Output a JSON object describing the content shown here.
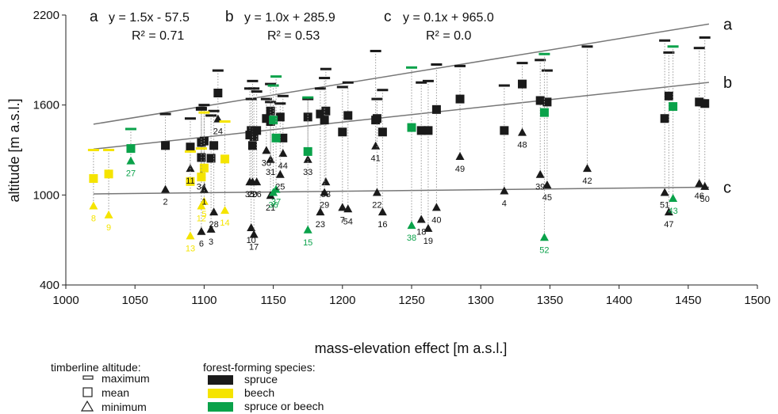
{
  "colors": {
    "spruce": "#1a1a1a",
    "beech": "#f5e400",
    "mixed": "#0aa24a",
    "line": "#777777",
    "dotted": "#9a9a9a"
  },
  "chart_data": {
    "type": "scatter",
    "xlabel": "mass-elevation effect [m a.s.l.]",
    "ylabel": "altitude [m a.s.l.]",
    "xlim": [
      1000,
      1500
    ],
    "ylim": [
      400,
      2200
    ],
    "xticks": [
      "1000",
      "1050",
      "1100",
      "1150",
      "1200",
      "1250",
      "1300",
      "1350",
      "1400",
      "1450",
      "1500"
    ],
    "yticks": [
      "400",
      "1000",
      "1600",
      "2200"
    ],
    "grid": false,
    "regressions": [
      {
        "letter": "a",
        "equation": "y = 1.5x - 57.5",
        "r2": "R² = 0.71",
        "x": [
          1020,
          1465
        ],
        "y": [
          1472,
          2140
        ]
      },
      {
        "letter": "b",
        "equation": "y = 1.0x + 285.9",
        "r2": "R² = 0.53",
        "x": [
          1020,
          1465
        ],
        "y": [
          1306,
          1751
        ]
      },
      {
        "letter": "c",
        "equation": "y = 0.1x + 965.0",
        "r2": "R² = 0.0",
        "x": [
          1020,
          1465
        ],
        "y": [
          1007,
          1052
        ]
      }
    ],
    "points": [
      {
        "id": "2",
        "sp": "spruce",
        "x": 1072,
        "max": 1540,
        "mean": 1330,
        "min": 1030
      },
      {
        "id": "3",
        "sp": "spruce",
        "x": 1105,
        "max": 1530,
        "mean": 1245,
        "min": 765
      },
      {
        "id": "6",
        "sp": "spruce",
        "x": 1098,
        "max": 1570,
        "mean": 1350,
        "min": 750
      },
      {
        "id": "11",
        "sp": "spruce",
        "x": 1090,
        "max": 1510,
        "mean": 1320,
        "min": 1170
      },
      {
        "id": "24",
        "sp": "spruce",
        "x": 1110,
        "max": 1830,
        "mean": 1680,
        "min": 1500
      },
      {
        "id": "1",
        "sp": "spruce",
        "x": 1100,
        "max": 1600,
        "mean": 1360,
        "min": 1030
      },
      {
        "id": "34",
        "sp": "spruce",
        "x": 1098,
        "max": 1580,
        "mean": 1250,
        "min": 1130
      },
      {
        "id": "28",
        "sp": "spruce",
        "x": 1107,
        "max": 1560,
        "mean": 1330,
        "min": 880
      },
      {
        "id": "10",
        "sp": "spruce",
        "x": 1134,
        "max": 1640,
        "mean": 1430,
        "min": 775
      },
      {
        "id": "17",
        "sp": "spruce",
        "x": 1136,
        "max": 1710,
        "mean": 1390,
        "min": 730
      },
      {
        "id": "35",
        "sp": "spruce",
        "x": 1133,
        "max": 1710,
        "mean": 1400,
        "min": 1080
      },
      {
        "id": "20",
        "sp": "spruce",
        "x": 1135,
        "max": 1760,
        "mean": 1330,
        "min": 1080
      },
      {
        "id": "26",
        "sp": "spruce",
        "x": 1138,
        "max": 1690,
        "mean": 1430,
        "min": 1080
      },
      {
        "id": "30",
        "sp": "spruce",
        "x": 1145,
        "max": 1640,
        "mean": 1510,
        "min": 1290
      },
      {
        "id": "31",
        "sp": "spruce",
        "x": 1148,
        "max": 1620,
        "mean": 1560,
        "min": 1230
      },
      {
        "id": "21",
        "sp": "spruce",
        "x": 1148,
        "max": 1740,
        "mean": 1490,
        "min": 990
      },
      {
        "id": "44",
        "sp": "spruce",
        "x": 1157,
        "max": 1660,
        "mean": 1380,
        "min": 1270
      },
      {
        "id": "25",
        "sp": "spruce",
        "x": 1155,
        "max": 1610,
        "mean": 1520,
        "min": 1130
      },
      {
        "id": "33",
        "sp": "spruce",
        "x": 1175,
        "max": 1640,
        "mean": 1520,
        "min": 1230
      },
      {
        "id": "23",
        "sp": "spruce",
        "x": 1184,
        "max": 1710,
        "mean": 1540,
        "min": 880
      },
      {
        "id": "53",
        "sp": "spruce",
        "x": 1188,
        "max": 1840,
        "mean": 1560,
        "min": 1080
      },
      {
        "id": "29",
        "sp": "spruce",
        "x": 1187,
        "max": 1780,
        "mean": 1500,
        "min": 1010
      },
      {
        "id": "7",
        "sp": "spruce",
        "x": 1200,
        "max": 1720,
        "mean": 1420,
        "min": 910
      },
      {
        "id": "54",
        "sp": "spruce",
        "x": 1204,
        "max": 1750,
        "mean": 1530,
        "min": 900
      },
      {
        "id": "41",
        "sp": "spruce",
        "x": 1224,
        "max": 1960,
        "mean": 1500,
        "min": 1320
      },
      {
        "id": "22",
        "sp": "spruce",
        "x": 1225,
        "max": 1640,
        "mean": 1510,
        "min": 1010
      },
      {
        "id": "16",
        "sp": "spruce",
        "x": 1229,
        "max": 1700,
        "mean": 1420,
        "min": 880
      },
      {
        "id": "18",
        "sp": "spruce",
        "x": 1257,
        "max": 1750,
        "mean": 1430,
        "min": 830
      },
      {
        "id": "19",
        "sp": "spruce",
        "x": 1262,
        "max": 1760,
        "mean": 1430,
        "min": 770
      },
      {
        "id": "40",
        "sp": "spruce",
        "x": 1268,
        "max": 1870,
        "mean": 1570,
        "min": 910
      },
      {
        "id": "49",
        "sp": "spruce",
        "x": 1285,
        "max": 1860,
        "mean": 1640,
        "min": 1250
      },
      {
        "id": "4",
        "sp": "spruce",
        "x": 1317,
        "max": 1730,
        "mean": 1430,
        "min": 1020
      },
      {
        "id": "48",
        "sp": "spruce",
        "x": 1330,
        "max": 1880,
        "mean": 1740,
        "min": 1410
      },
      {
        "id": "39",
        "sp": "spruce",
        "x": 1343,
        "max": 1900,
        "mean": 1630,
        "min": 1130
      },
      {
        "id": "45",
        "sp": "spruce",
        "x": 1348,
        "max": 1830,
        "mean": 1620,
        "min": 1060
      },
      {
        "id": "42",
        "sp": "spruce",
        "x": 1377,
        "max": 1990,
        "mean": null,
        "min": 1170
      },
      {
        "id": "51",
        "sp": "spruce",
        "x": 1433,
        "max": 2030,
        "mean": 1510,
        "min": 1010
      },
      {
        "id": "47",
        "sp": "spruce",
        "x": 1436,
        "max": 1950,
        "mean": 1660,
        "min": 880
      },
      {
        "id": "46",
        "sp": "spruce",
        "x": 1458,
        "max": 1980,
        "mean": 1620,
        "min": 1070
      },
      {
        "id": "50",
        "sp": "spruce",
        "x": 1462,
        "max": 2050,
        "mean": 1610,
        "min": 1050
      },
      {
        "id": "8",
        "sp": "beech",
        "x": 1020,
        "max": 1300,
        "mean": 1110,
        "min": 920
      },
      {
        "id": "9",
        "sp": "beech",
        "x": 1031,
        "max": 1300,
        "mean": 1140,
        "min": 860
      },
      {
        "id": "13",
        "sp": "beech",
        "x": 1090,
        "max": 1290,
        "mean": 1090,
        "min": 720
      },
      {
        "id": "5",
        "sp": "beech",
        "x": 1100,
        "max": 1550,
        "mean": 1180,
        "min": 950
      },
      {
        "id": "12",
        "sp": "beech",
        "x": 1098,
        "max": 1310,
        "mean": 1120,
        "min": 920
      },
      {
        "id": "14",
        "sp": "beech",
        "x": 1115,
        "max": 1490,
        "mean": 1240,
        "min": 890
      },
      {
        "id": "27",
        "sp": "mixed",
        "x": 1047,
        "max": 1440,
        "mean": 1310,
        "min": 1220
      },
      {
        "id": "36",
        "sp": "mixed",
        "x": 1150,
        "max": 1730,
        "mean": 1500,
        "min": 1010
      },
      {
        "id": "37",
        "sp": "mixed",
        "x": 1152,
        "max": 1790,
        "mean": 1380,
        "min": 1030
      },
      {
        "id": "15",
        "sp": "mixed",
        "x": 1175,
        "max": 1650,
        "mean": 1290,
        "min": 760
      },
      {
        "id": "38",
        "sp": "mixed",
        "x": 1250,
        "max": 1850,
        "mean": 1450,
        "min": 790
      },
      {
        "id": "52",
        "sp": "mixed",
        "x": 1346,
        "max": 1940,
        "mean": 1550,
        "min": 710
      },
      {
        "id": "43",
        "sp": "mixed",
        "x": 1439,
        "max": 1990,
        "mean": 1590,
        "min": 970
      }
    ]
  },
  "legend": {
    "altitude_title": "timberline altitude:",
    "max_label": "maximum",
    "mean_label": "mean",
    "min_label": "minimum",
    "species_title": "forest-forming species:",
    "spruce_label": "spruce",
    "beech_label": "beech",
    "mixed_label": "spruce or beech"
  }
}
